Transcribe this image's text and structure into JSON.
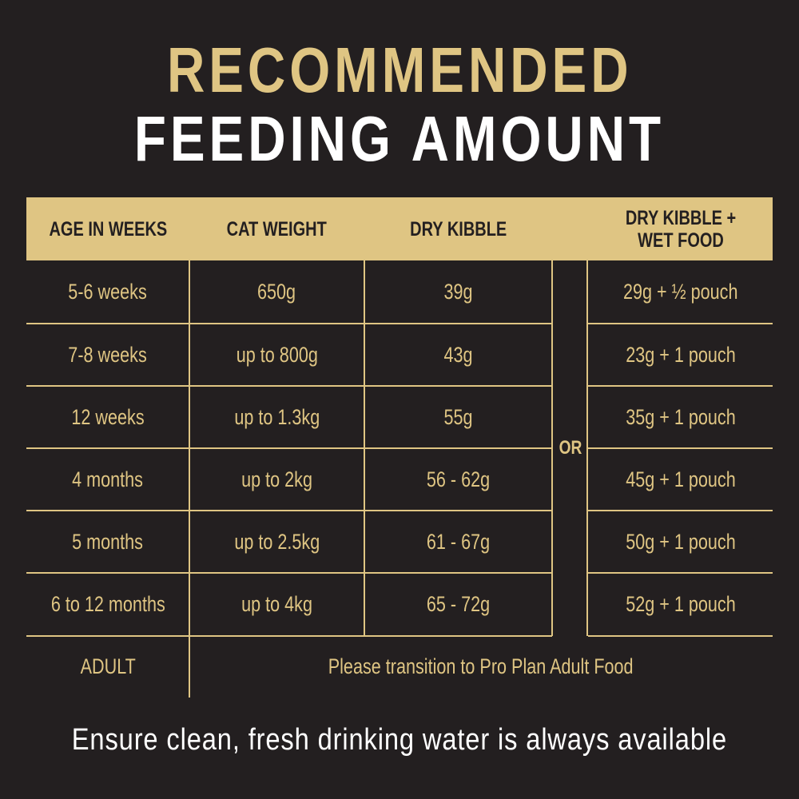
{
  "title": {
    "line1": "RECOMMENDED",
    "line2": "FEEDING AMOUNT"
  },
  "colors": {
    "background": "#231f20",
    "gold": "#dfc583",
    "white": "#ffffff"
  },
  "table": {
    "headers": [
      "AGE IN WEEKS",
      "CAT WEIGHT",
      "DRY KIBBLE",
      "",
      "DRY KIBBLE + WET FOOD"
    ],
    "or_label": "OR",
    "rows": [
      {
        "age": "5-6 weeks",
        "weight": "650g",
        "dry": "39g",
        "mixed": "29g + ½ pouch"
      },
      {
        "age": "7-8 weeks",
        "weight": "up to 800g",
        "dry": "43g",
        "mixed": "23g + 1 pouch"
      },
      {
        "age": "12 weeks",
        "weight": "up to 1.3kg",
        "dry": "55g",
        "mixed": "35g + 1 pouch"
      },
      {
        "age": "4 months",
        "weight": "up to 2kg",
        "dry": "56 - 62g",
        "mixed": "45g + 1 pouch"
      },
      {
        "age": "5 months",
        "weight": "up to 2.5kg",
        "dry": "61 - 67g",
        "mixed": "50g + 1 pouch"
      },
      {
        "age": "6 to 12 months",
        "weight": "up to 4kg",
        "dry": "65 - 72g",
        "mixed": "52g + 1 pouch"
      }
    ],
    "adult": {
      "age": "ADULT",
      "note": "Please transition to Pro Plan Adult Food"
    }
  },
  "footer": "Ensure clean, fresh drinking water is always available"
}
